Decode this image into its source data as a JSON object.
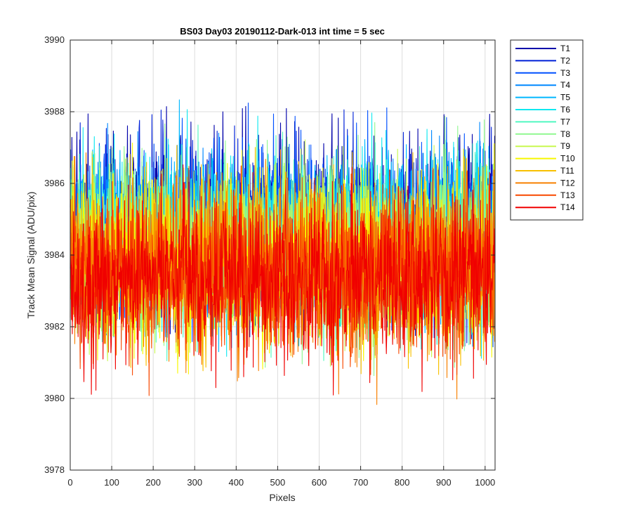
{
  "chart_data": {
    "type": "line",
    "title": "BS03 Day03 20190112-Dark-013 int time = 5 sec",
    "xlabel": "Pixels",
    "ylabel": "Track Mean Signal (ADU/pix)",
    "xlim": [
      0,
      1024
    ],
    "ylim": [
      3978,
      3990
    ],
    "xticks": [
      "0",
      "100",
      "200",
      "300",
      "400",
      "500",
      "600",
      "700",
      "800",
      "900",
      "1000"
    ],
    "yticks": [
      "3978",
      "3980",
      "3982",
      "3984",
      "3986",
      "3988",
      "3990"
    ],
    "grid": true,
    "legend_location": "outside-top-right",
    "samples_per_series": 1024,
    "series": [
      {
        "name": "T1",
        "color": "#0000aa",
        "mean": 3984.8,
        "min": 3981.6,
        "max": 3988.2
      },
      {
        "name": "T2",
        "color": "#0020d8",
        "mean": 3984.7,
        "min": 3981.4,
        "max": 3988.1
      },
      {
        "name": "T3",
        "color": "#0050ff",
        "mean": 3984.6,
        "min": 3981.4,
        "max": 3989.1
      },
      {
        "name": "T4",
        "color": "#0088ff",
        "mean": 3984.5,
        "min": 3981.3,
        "max": 3988.0
      },
      {
        "name": "T5",
        "color": "#00b8ff",
        "mean": 3984.4,
        "min": 3981.2,
        "max": 3988.5
      },
      {
        "name": "T6",
        "color": "#10e8f0",
        "mean": 3984.3,
        "min": 3981.1,
        "max": 3988.1
      },
      {
        "name": "T7",
        "color": "#50f8c0",
        "mean": 3984.2,
        "min": 3981.0,
        "max": 3987.8
      },
      {
        "name": "T8",
        "color": "#90f890",
        "mean": 3984.1,
        "min": 3980.4,
        "max": 3988.0
      },
      {
        "name": "T9",
        "color": "#c8f850",
        "mean": 3984.0,
        "min": 3980.8,
        "max": 3987.6
      },
      {
        "name": "T10",
        "color": "#f8f800",
        "mean": 3983.9,
        "min": 3980.6,
        "max": 3988.9
      },
      {
        "name": "T11",
        "color": "#f8c000",
        "mean": 3983.7,
        "min": 3980.5,
        "max": 3987.2
      },
      {
        "name": "T12",
        "color": "#f88000",
        "mean": 3983.6,
        "min": 3979.1,
        "max": 3987.0
      },
      {
        "name": "T13",
        "color": "#f84800",
        "mean": 3983.5,
        "min": 3980.0,
        "max": 3986.8
      },
      {
        "name": "T14",
        "color": "#f00000",
        "mean": 3983.4,
        "min": 3979.4,
        "max": 3986.6
      }
    ]
  }
}
